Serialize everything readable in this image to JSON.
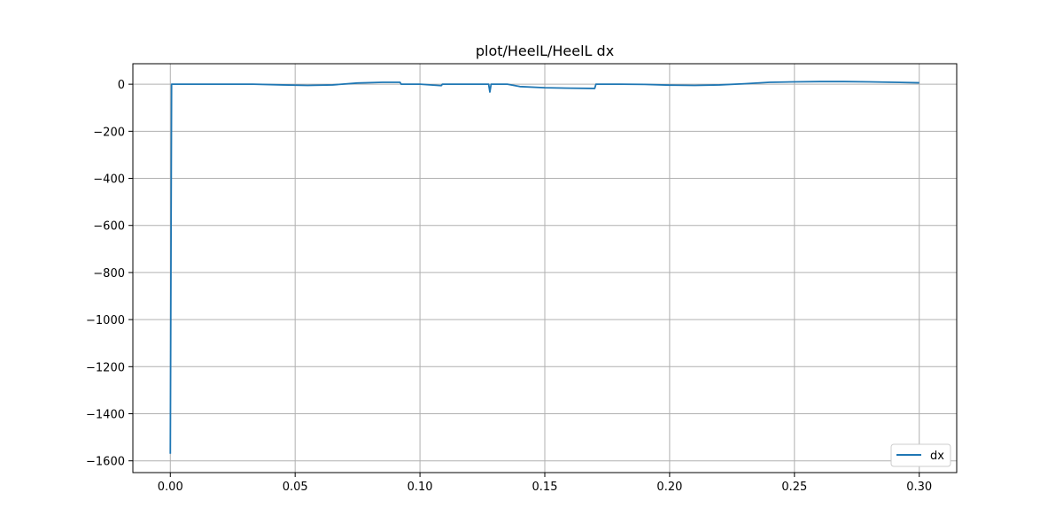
{
  "chart_data": {
    "type": "line",
    "title": "plot/HeelL/HeelL dx",
    "xlabel": "",
    "ylabel": "",
    "xlim": [
      -0.015,
      0.315
    ],
    "ylim": [
      -1650,
      87
    ],
    "x_ticks": [
      0.0,
      0.05,
      0.1,
      0.15,
      0.2,
      0.25,
      0.3
    ],
    "x_tick_labels": [
      "0.00",
      "0.05",
      "0.10",
      "0.15",
      "0.20",
      "0.25",
      "0.30"
    ],
    "y_ticks": [
      0,
      -200,
      -400,
      -600,
      -800,
      -1000,
      -1200,
      -1400,
      -1600
    ],
    "y_tick_labels": [
      "0",
      "−200",
      "−400",
      "−600",
      "−800",
      "−1000",
      "−1200",
      "−1400",
      "−1600"
    ],
    "grid": true,
    "legend_position": "lower-right",
    "series": [
      {
        "name": "dx",
        "color": "#1f77b4",
        "points": [
          [
            0.0,
            -1570
          ],
          [
            0.0005,
            0
          ],
          [
            0.01,
            0
          ],
          [
            0.02,
            0
          ],
          [
            0.033,
            0
          ],
          [
            0.045,
            -3
          ],
          [
            0.055,
            -5
          ],
          [
            0.065,
            -3
          ],
          [
            0.075,
            5
          ],
          [
            0.085,
            8
          ],
          [
            0.092,
            8
          ],
          [
            0.0925,
            0
          ],
          [
            0.1,
            0
          ],
          [
            0.1085,
            -6
          ],
          [
            0.109,
            0
          ],
          [
            0.118,
            0
          ],
          [
            0.1275,
            0
          ],
          [
            0.128,
            -33
          ],
          [
            0.1285,
            0
          ],
          [
            0.135,
            0
          ],
          [
            0.14,
            -10
          ],
          [
            0.15,
            -15
          ],
          [
            0.16,
            -17
          ],
          [
            0.17,
            -18
          ],
          [
            0.1705,
            0
          ],
          [
            0.18,
            0
          ],
          [
            0.19,
            -1
          ],
          [
            0.2,
            -4
          ],
          [
            0.21,
            -5
          ],
          [
            0.22,
            -3
          ],
          [
            0.23,
            2
          ],
          [
            0.24,
            8
          ],
          [
            0.25,
            10
          ],
          [
            0.26,
            11
          ],
          [
            0.27,
            11
          ],
          [
            0.28,
            10
          ],
          [
            0.29,
            8
          ],
          [
            0.3,
            6
          ]
        ]
      }
    ]
  }
}
